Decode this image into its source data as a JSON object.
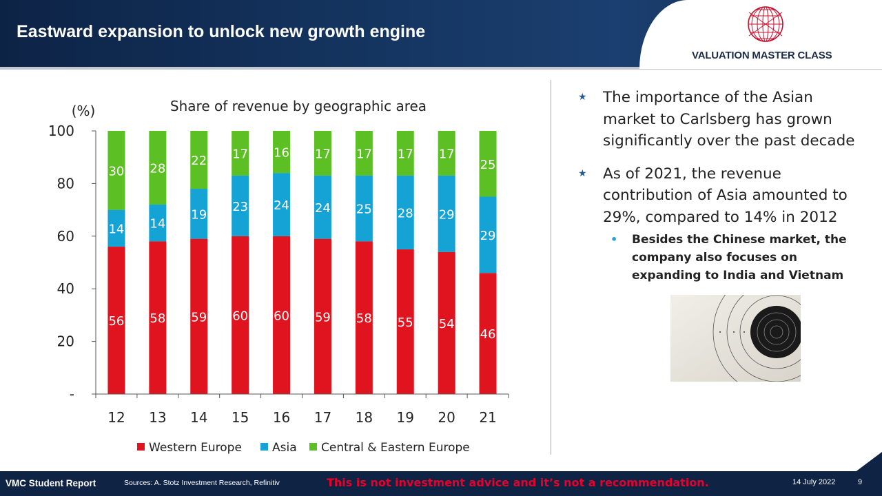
{
  "header": {
    "title": "Eastward expansion to unlock new growth engine",
    "logo_text": "VALUATION MASTER CLASS"
  },
  "chart_data": {
    "type": "bar",
    "stacked": true,
    "title": "Share of revenue by geographic area",
    "ylabel": "(%)",
    "xlabel": "",
    "ylim": [
      0,
      100
    ],
    "y_ticks": [
      "-",
      "20",
      "40",
      "60",
      "80",
      "100"
    ],
    "categories": [
      "12",
      "13",
      "14",
      "15",
      "16",
      "17",
      "18",
      "19",
      "20",
      "21"
    ],
    "series": [
      {
        "name": "Western Europe",
        "color": "#e0141e",
        "values": [
          56,
          58,
          59,
          60,
          60,
          59,
          58,
          55,
          54,
          46
        ]
      },
      {
        "name": "Asia",
        "color": "#14a3d4",
        "values": [
          14,
          14,
          19,
          23,
          24,
          24,
          25,
          28,
          29,
          29
        ]
      },
      {
        "name": "Central & Eastern Europe",
        "color": "#5cbf24",
        "values": [
          30,
          28,
          22,
          17,
          16,
          17,
          17,
          17,
          17,
          25
        ]
      }
    ],
    "legend_position": "bottom",
    "grid": false
  },
  "bullets": [
    {
      "text": "The importance of the Asian market to Carlsberg has grown significantly over the past decade"
    },
    {
      "text": "As of 2021, the revenue contribution of Asia amounted to 29%, compared to 14% in 2012"
    }
  ],
  "sub_bullet": {
    "text": "Besides the Chinese market, the company also focuses on expanding to India and Vietnam"
  },
  "footer": {
    "report_name": "VMC Student Report",
    "sources": "Sources: A. Stotz Investment Research, Refinitiv",
    "disclaimer": "This is not investment advice and it’s not a recommendation.",
    "date": "14 July 2022",
    "page": "9"
  },
  "colors": {
    "header_bg": "#14345f",
    "footer_bg": "#0f2344",
    "disclaimer": "#e8002a",
    "star": "#1f5c99"
  }
}
